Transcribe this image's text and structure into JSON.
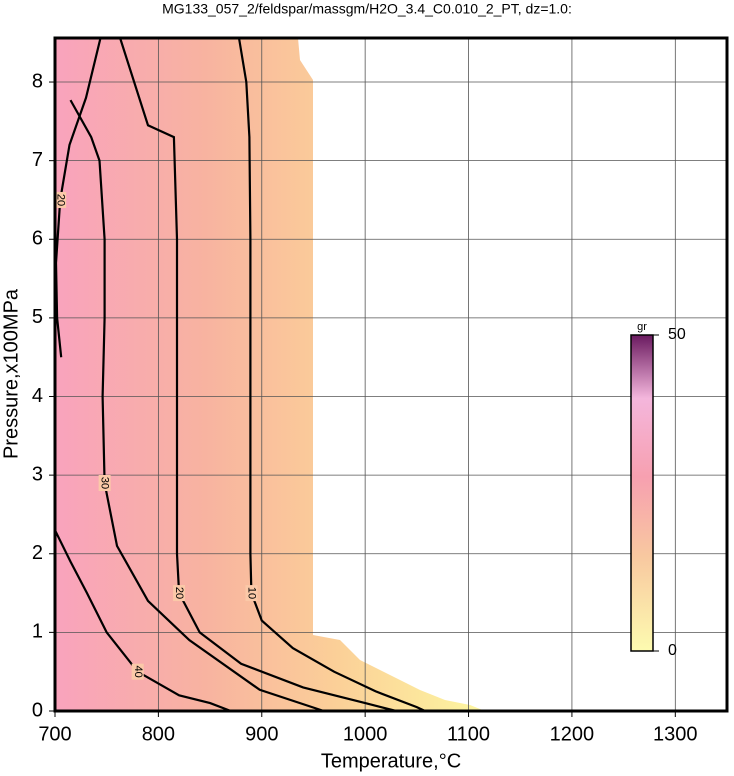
{
  "chart_data": {
    "type": "contour",
    "title": "MG133_057_2/feldspar/massgm/H2O_3.4_C0.010_2_PT, dz=1.0:",
    "x_label": "Temperature,°C",
    "y_label": "Pressure,x100MPa",
    "xlim": [
      700,
      1350
    ],
    "ylim": [
      0,
      8.56
    ],
    "xticks": [
      700,
      800,
      900,
      1000,
      1100,
      1200,
      1300
    ],
    "yticks": [
      0,
      1,
      2,
      3,
      4,
      5,
      6,
      7,
      8
    ],
    "grid": true,
    "series": [
      {
        "name": "10",
        "color": "#000000",
        "x": [
          878,
          885,
          888,
          889,
          889,
          889,
          890,
          900,
          930,
          970,
          1010,
          1050,
          1058
        ],
        "values": [
          8.56,
          8.0,
          7.3,
          6.0,
          4.0,
          2.0,
          1.5,
          1.15,
          0.8,
          0.5,
          0.25,
          0.05,
          0
        ]
      },
      {
        "name": "20",
        "color": "#000000",
        "x": [
          763,
          790,
          815,
          818,
          818,
          818,
          820,
          840,
          880,
          940,
          1000,
          1030
        ],
        "values": [
          8.56,
          7.45,
          7.3,
          6.0,
          4.0,
          2.0,
          1.5,
          1.0,
          0.6,
          0.3,
          0.1,
          0
        ]
      },
      {
        "name": "30",
        "color": "#000000",
        "x": [
          715,
          735,
          743,
          748,
          748,
          746,
          748,
          760,
          790,
          830,
          898,
          960
        ],
        "values": [
          7.77,
          7.3,
          7.0,
          6.0,
          5.0,
          4.0,
          2.9,
          2.1,
          1.4,
          0.9,
          0.27,
          0
        ]
      },
      {
        "name": "20",
        "color": "#000000",
        "x": [
          744,
          730,
          714,
          705,
          701,
          702,
          706
        ],
        "values": [
          8.56,
          7.8,
          7.2,
          6.5,
          5.7,
          5.0,
          4.5
        ]
      },
      {
        "name": "40",
        "color": "#000000",
        "x": [
          700,
          715,
          731,
          750,
          780,
          820,
          850,
          870
        ],
        "values": [
          2.3,
          1.9,
          1.5,
          1.0,
          0.5,
          0.2,
          0.1,
          0
        ]
      }
    ],
    "colorbar": {
      "label": "gr",
      "lim": [
        0,
        50
      ],
      "ticks": [
        0,
        50
      ]
    }
  }
}
